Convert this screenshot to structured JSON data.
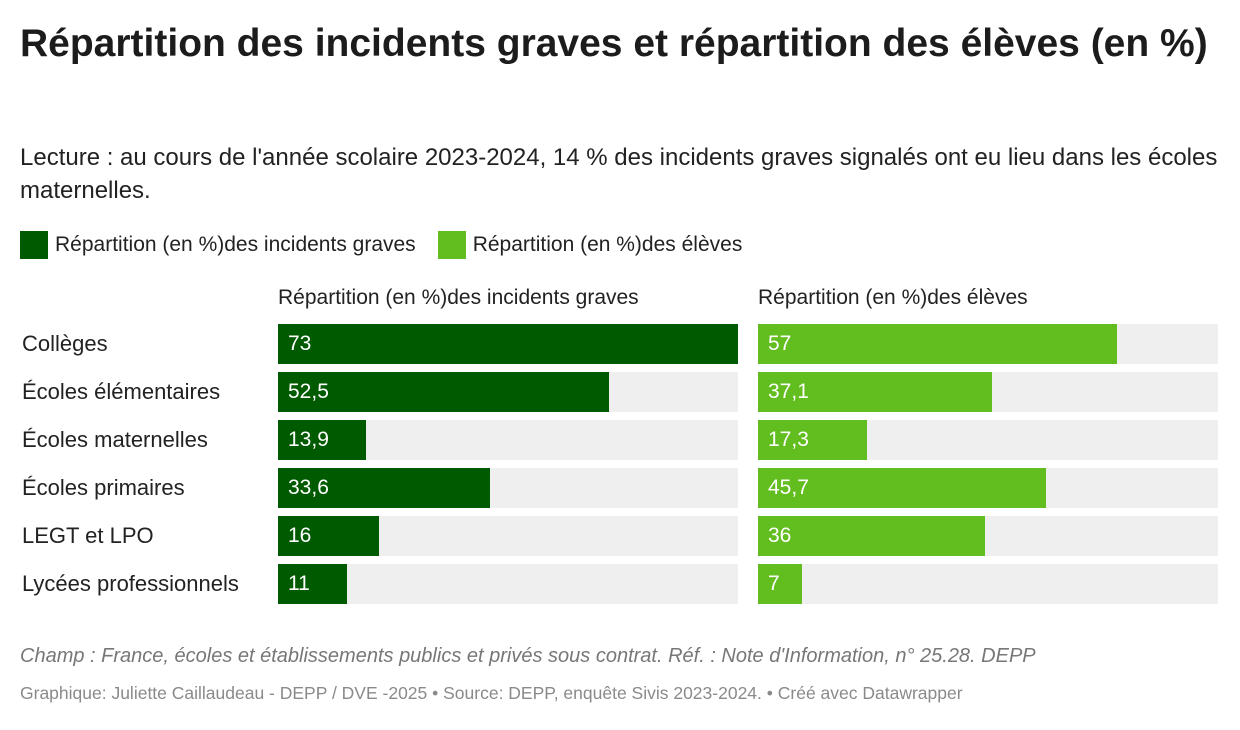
{
  "chart_data": {
    "type": "bar",
    "title": "Répartition des incidents graves et répartition des élèves (en %)",
    "subtitle": "Lecture : au cours de l'année scolaire 2023-2024, 14 % des incidents graves signalés ont eu lieu dans les écoles maternelles.",
    "legend_placement": "top-left",
    "xlim": [
      0,
      73
    ],
    "categories": [
      "Collèges",
      "Écoles élémentaires",
      "Écoles maternelles",
      "Écoles primaires",
      "LEGT et LPO",
      "Lycées professionnels"
    ],
    "series": [
      {
        "name": "Répartition (en %)des incidents graves",
        "color": "#005a00",
        "values": [
          73,
          52.5,
          13.9,
          33.6,
          16,
          11
        ],
        "labels": [
          "73",
          "52,5",
          "13,9",
          "33,6",
          "16",
          "11"
        ]
      },
      {
        "name": "Répartition (en %)des élèves",
        "color": "#62bd1f",
        "values": [
          57,
          37.1,
          17.3,
          45.7,
          36,
          7
        ],
        "labels": [
          "57",
          "37,1",
          "17,3",
          "45,7",
          "36",
          "7"
        ]
      }
    ],
    "notes": "Champ : France, écoles et établissements publics et privés sous contrat. Réf. : Note d'Information, n° 25.28. DEPP",
    "footer": "Graphique: Juliette Caillaudeau - DEPP / DVE -2025 • Source: DEPP, enquête Sivis 2023-2024.  • Créé avec Datawrapper"
  }
}
